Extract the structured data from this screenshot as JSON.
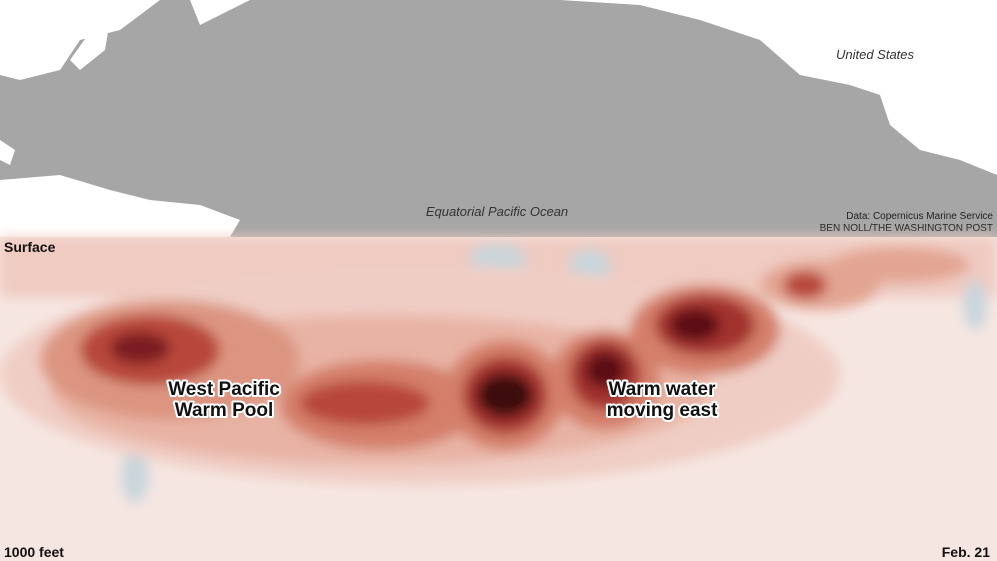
{
  "map": {
    "labels": {
      "country": "United States",
      "ocean": "Equatorial Pacific Ocean"
    },
    "credits": {
      "source": "Data: Copernicus Marine Service",
      "byline": "BEN NOLL/THE WASHINGTON POST"
    }
  },
  "section": {
    "top_label": "Surface",
    "bottom_label": "1000 feet",
    "date": "Feb. 21",
    "annotations": [
      {
        "lines": [
          "West Pacific",
          "Warm Pool"
        ]
      },
      {
        "lines": [
          "Warm water",
          "moving east"
        ]
      }
    ]
  }
}
